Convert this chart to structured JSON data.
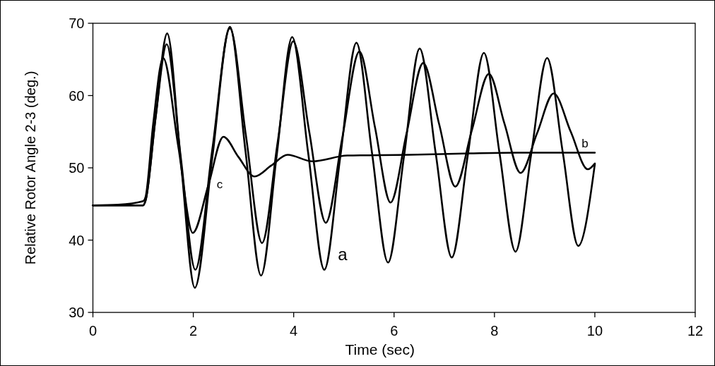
{
  "chart_data": {
    "type": "line",
    "xlabel": "Time (sec)",
    "ylabel": "Relative Rotor Angle 2-3 (deg.)",
    "xlim": [
      0,
      12
    ],
    "xticks": [
      0,
      2,
      4,
      6,
      8,
      10,
      12
    ],
    "ylim": [
      30,
      70
    ],
    "yticks": [
      30,
      40,
      50,
      60,
      70
    ],
    "grid": false,
    "marker": "none",
    "line_style": "solid",
    "series": [
      {
        "name": "a",
        "color": "#000000",
        "x": [
          0,
          1.0,
          1.05,
          1.25,
          1.48,
          1.75,
          2.03,
          2.38,
          2.73,
          3.04,
          3.35,
          3.66,
          3.97,
          4.29,
          4.61,
          4.93,
          5.25,
          5.56,
          5.88,
          6.2,
          6.51,
          6.83,
          7.15,
          7.47,
          7.79,
          8.1,
          8.42,
          8.73,
          9.05,
          9.36,
          9.67,
          10.0
        ],
        "values": [
          44.8,
          44.8,
          45.5,
          57,
          68.6,
          51,
          33.4,
          51.5,
          69.5,
          52.3,
          35.1,
          51.6,
          68.1,
          52,
          35.9,
          51.6,
          67.3,
          52.1,
          36.9,
          51.7,
          66.5,
          52,
          37.6,
          51.8,
          65.9,
          52.1,
          38.4,
          51.8,
          65.2,
          52.2,
          39.2,
          50.5
        ]
      },
      {
        "name": "b",
        "color": "#000000",
        "x": [
          0,
          1.0,
          1.05,
          1.25,
          1.47,
          1.75,
          2.04,
          2.38,
          2.73,
          3.05,
          3.37,
          3.68,
          3.99,
          4.31,
          4.64,
          4.97,
          5.31,
          5.62,
          5.93,
          6.25,
          6.58,
          6.9,
          7.22,
          7.55,
          7.89,
          8.2,
          8.52,
          8.85,
          9.18,
          9.52,
          9.86,
          10.0
        ],
        "values": [
          44.8,
          44.8,
          45.5,
          57,
          67.1,
          51.5,
          35.9,
          52.6,
          69.3,
          54.4,
          39.6,
          53.5,
          67.5,
          55,
          42.4,
          54.2,
          66.1,
          55.6,
          45.2,
          54.8,
          64.5,
          56,
          47.4,
          55.2,
          63,
          56.1,
          49.3,
          54.8,
          60.3,
          55,
          49.8,
          50.6
        ]
      },
      {
        "name": "c",
        "color": "#000000",
        "x": [
          0,
          0.5,
          1.0,
          1.05,
          1.2,
          1.4,
          1.7,
          1.99,
          2.3,
          2.6,
          2.9,
          3.22,
          3.55,
          3.88,
          4.37,
          5.07,
          6.3,
          7.5,
          8.46,
          10.0
        ],
        "values": [
          44.8,
          44.9,
          45.4,
          46,
          56,
          65.2,
          53,
          41,
          47.6,
          54.3,
          51.5,
          48.8,
          50.3,
          51.8,
          50.9,
          51.7,
          51.8,
          52,
          52.1,
          52.1
        ]
      }
    ]
  }
}
